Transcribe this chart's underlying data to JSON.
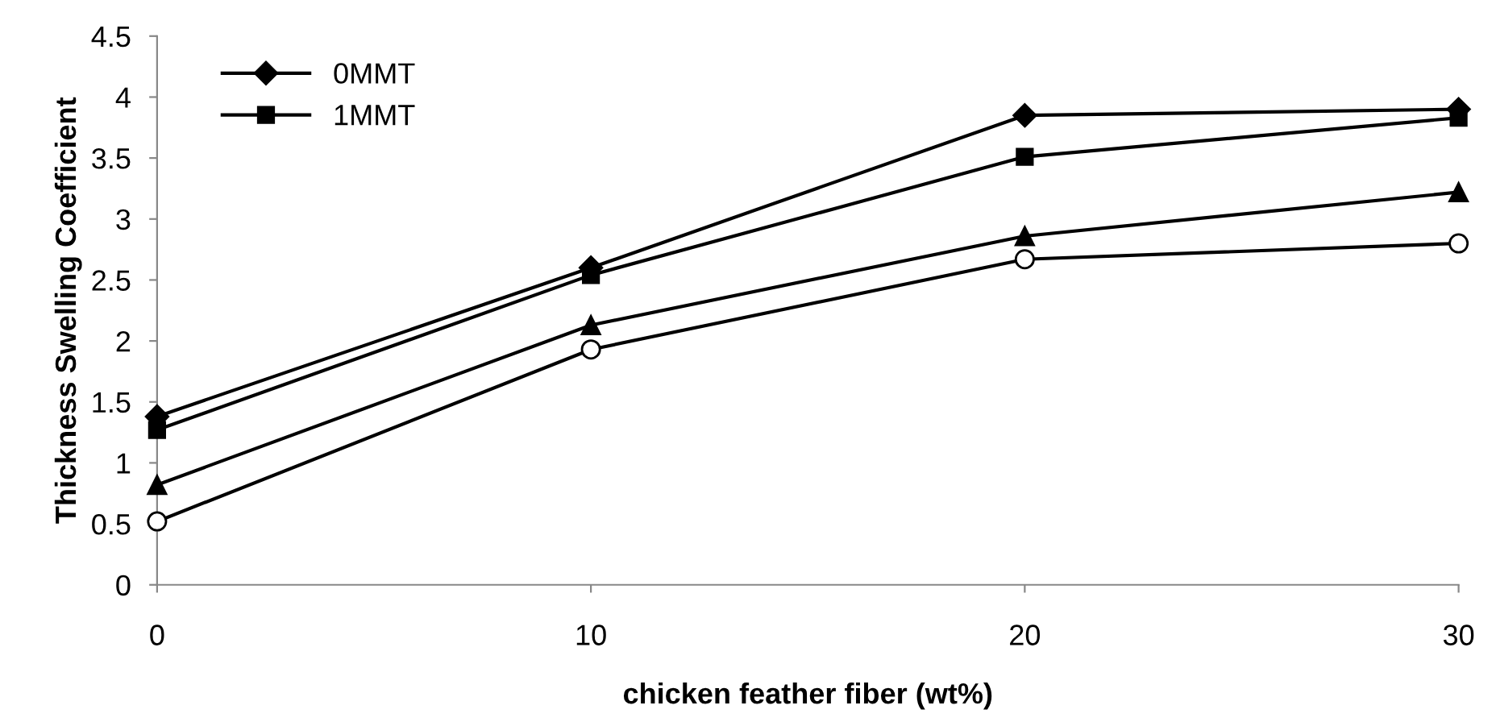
{
  "chart_data": {
    "type": "line",
    "xlabel": "chicken feather fiber (wt%)",
    "ylabel": "Thickness Swelling Coefficient",
    "x": [
      0,
      10,
      20,
      30
    ],
    "series": [
      {
        "name": "0MMT",
        "color": "#000000",
        "marker": "diamond",
        "values": [
          1.38,
          2.6,
          3.85,
          3.9
        ]
      },
      {
        "name": "1MMT",
        "color": "#000000",
        "marker": "square",
        "values": [
          1.27,
          2.54,
          3.51,
          3.83
        ]
      },
      {
        "color": "#000000",
        "marker": "triangle",
        "values": [
          0.82,
          2.13,
          2.86,
          3.22
        ]
      },
      {
        "color": "#000000",
        "marker": "circle",
        "values": [
          0.52,
          1.93,
          2.67,
          2.8
        ]
      }
    ],
    "xlim": [
      0,
      30
    ],
    "xticks": [
      0,
      10,
      20,
      30
    ],
    "ylim": [
      0,
      4.5
    ],
    "yticks": [
      0,
      0.5,
      1,
      1.5,
      2,
      2.5,
      3,
      3.5,
      4,
      4.5
    ],
    "grid": false,
    "legend": "top left",
    "line_style": "solid"
  }
}
